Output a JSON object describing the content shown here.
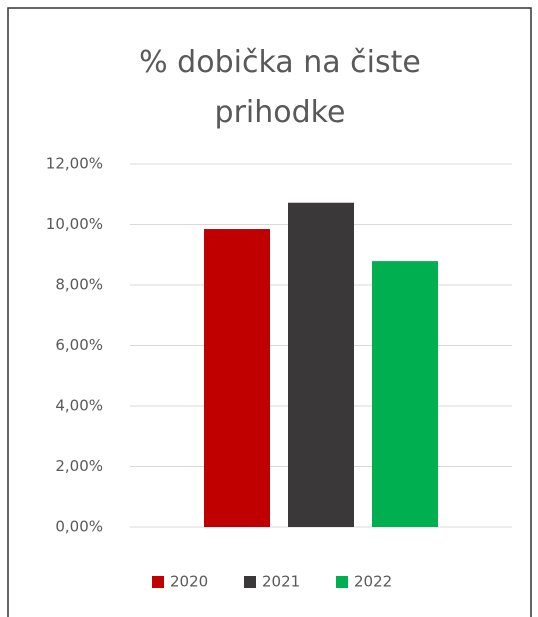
{
  "chart_data": {
    "type": "bar",
    "title": "% dobička na čiste prihodke",
    "categories": [
      null
    ],
    "series": [
      {
        "name": "2020",
        "color": "#c00000",
        "values": [
          9.85
        ]
      },
      {
        "name": "2021",
        "color": "#3a3838",
        "values": [
          10.72
        ]
      },
      {
        "name": "2022",
        "color": "#00b050",
        "values": [
          8.79
        ]
      }
    ],
    "ylim": [
      0,
      12
    ],
    "yticks": [
      {
        "value": 0,
        "label": "0,00%"
      },
      {
        "value": 2,
        "label": "2,00%"
      },
      {
        "value": 4,
        "label": "4,00%"
      },
      {
        "value": 6,
        "label": "6,00%"
      },
      {
        "value": 8,
        "label": "8,00%"
      },
      {
        "value": 10,
        "label": "10,00%"
      },
      {
        "value": 12,
        "label": "12,00%"
      }
    ],
    "grid": true,
    "legend": "bottom"
  }
}
